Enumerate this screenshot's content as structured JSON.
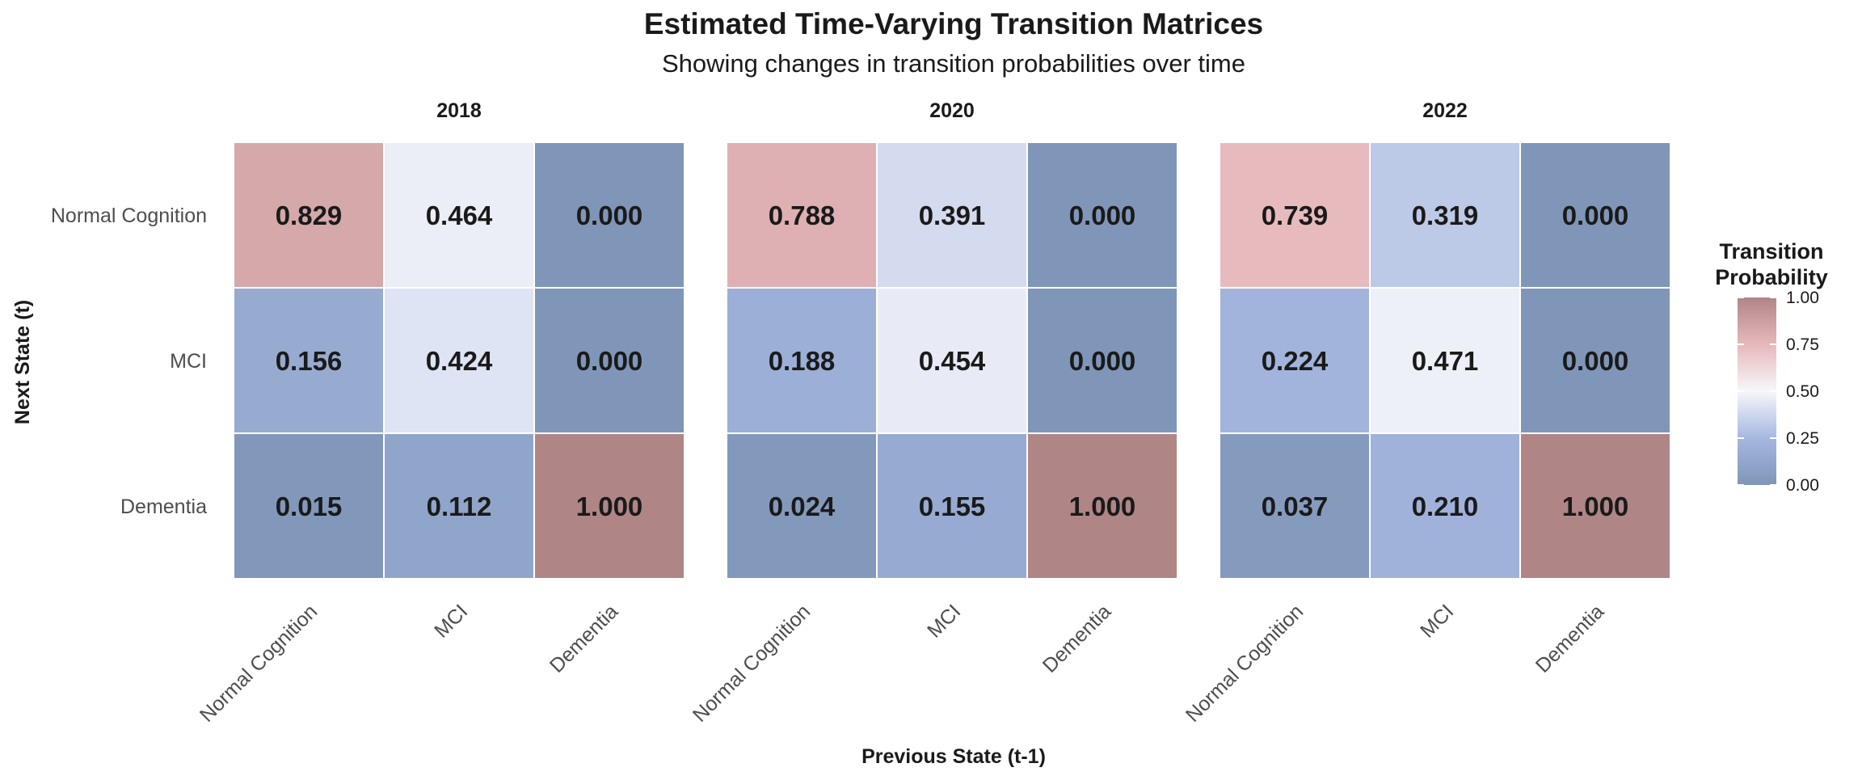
{
  "chart_data": {
    "type": "heatmap",
    "title": "Estimated Time-Varying Transition Matrices",
    "subtitle": "Showing changes in transition probabilities over time",
    "xlabel": "Previous State (t-1)",
    "ylabel": "Next State (t)",
    "states": [
      "Normal Cognition",
      "MCI",
      "Dementia"
    ],
    "facets": [
      {
        "label": "2018",
        "rows": [
          {
            "next_state": "Normal Cognition",
            "values": [
              0.829,
              0.464,
              0.0
            ],
            "labels": [
              "0.829",
              "0.464",
              "0.000"
            ]
          },
          {
            "next_state": "MCI",
            "values": [
              0.156,
              0.424,
              0.0
            ],
            "labels": [
              "0.156",
              "0.424",
              "0.000"
            ]
          },
          {
            "next_state": "Dementia",
            "values": [
              0.015,
              0.112,
              1.0
            ],
            "labels": [
              "0.015",
              "0.112",
              "1.000"
            ]
          }
        ]
      },
      {
        "label": "2020",
        "rows": [
          {
            "next_state": "Normal Cognition",
            "values": [
              0.788,
              0.391,
              0.0
            ],
            "labels": [
              "0.788",
              "0.391",
              "0.000"
            ]
          },
          {
            "next_state": "MCI",
            "values": [
              0.188,
              0.454,
              0.0
            ],
            "labels": [
              "0.188",
              "0.454",
              "0.000"
            ]
          },
          {
            "next_state": "Dementia",
            "values": [
              0.024,
              0.155,
              1.0
            ],
            "labels": [
              "0.024",
              "0.155",
              "1.000"
            ]
          }
        ]
      },
      {
        "label": "2022",
        "rows": [
          {
            "next_state": "Normal Cognition",
            "values": [
              0.739,
              0.319,
              0.0
            ],
            "labels": [
              "0.739",
              "0.319",
              "0.000"
            ]
          },
          {
            "next_state": "MCI",
            "values": [
              0.224,
              0.471,
              0.0
            ],
            "labels": [
              "0.224",
              "0.471",
              "0.000"
            ]
          },
          {
            "next_state": "Dementia",
            "values": [
              0.037,
              0.21,
              1.0
            ],
            "labels": [
              "0.037",
              "0.210",
              "1.000"
            ]
          }
        ]
      }
    ],
    "color_scale": {
      "low": "#7f96b8",
      "mid": "#f7f7fb",
      "high": "#b08586",
      "low_mid": "#a6b7e0",
      "high_mid": "#e6b8bb",
      "range": [
        0,
        1
      ],
      "midpoint": 0.5
    },
    "legend": {
      "title_lines": [
        "Transition",
        "Probability"
      ],
      "ticks": [
        "1.00",
        "0.75",
        "0.50",
        "0.25",
        "0.00"
      ],
      "placement": "right"
    },
    "grid": false
  }
}
